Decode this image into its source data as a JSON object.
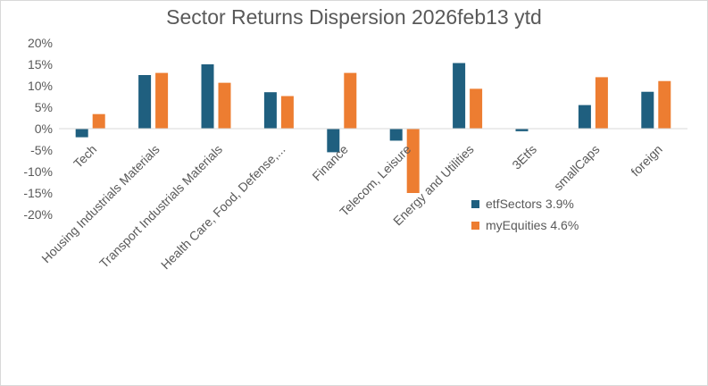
{
  "chart_data": {
    "type": "bar",
    "title": "Sector Returns Dispersion 2026feb13 ytd",
    "xlabel": "",
    "ylabel": "",
    "ylim": [
      -20,
      20
    ],
    "yticks": [
      "20%",
      "15%",
      "10%",
      "5%",
      "0%",
      "-5%",
      "-10%",
      "-15%",
      "-20%"
    ],
    "grid": false,
    "legend_position": "bottom-right",
    "categories": [
      "Tech",
      "Housing Industrials Materials",
      "Transport Industrials Materials",
      "Health Care, Food, Defense,...",
      "Finance",
      "Telecom, Leisure",
      "Energy and Utilities",
      "3Etfs",
      "smallCaps",
      "foreign"
    ],
    "series": [
      {
        "name": "etfSectors 3.9%",
        "color": "#1f5f7f",
        "values": [
          -2.0,
          12.5,
          15.0,
          8.5,
          -5.5,
          -2.8,
          15.3,
          -0.6,
          5.5,
          8.6
        ]
      },
      {
        "name": "myEquities 4.6%",
        "color": "#ed7d31",
        "values": [
          3.4,
          13.0,
          10.7,
          7.6,
          13.0,
          -15.0,
          9.3,
          null,
          12.0,
          11.1
        ]
      }
    ]
  }
}
